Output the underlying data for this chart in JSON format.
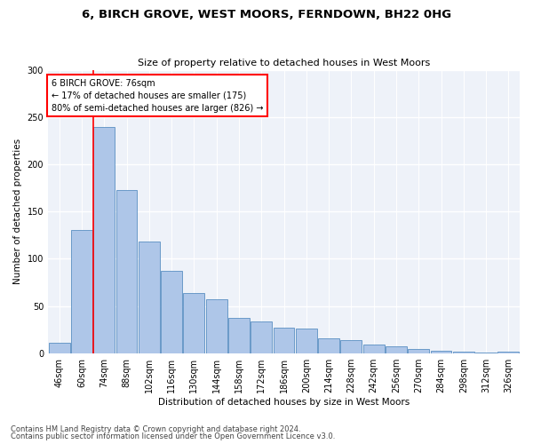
{
  "title": "6, BIRCH GROVE, WEST MOORS, FERNDOWN, BH22 0HG",
  "subtitle": "Size of property relative to detached houses in West Moors",
  "xlabel": "Distribution of detached houses by size in West Moors",
  "ylabel": "Number of detached properties",
  "bar_color": "#aec6e8",
  "bar_edge_color": "#5a8fc2",
  "annotation_title": "6 BIRCH GROVE: 76sqm",
  "annotation_line1": "← 17% of detached houses are smaller (175)",
  "annotation_line2": "80% of semi-detached houses are larger (826) →",
  "categories": [
    "46sqm",
    "60sqm",
    "74sqm",
    "88sqm",
    "102sqm",
    "116sqm",
    "130sqm",
    "144sqm",
    "158sqm",
    "172sqm",
    "186sqm",
    "200sqm",
    "214sqm",
    "228sqm",
    "242sqm",
    "256sqm",
    "270sqm",
    "284sqm",
    "298sqm",
    "312sqm",
    "326sqm"
  ],
  "bin_edges": [
    46,
    60,
    74,
    88,
    102,
    116,
    130,
    144,
    158,
    172,
    186,
    200,
    214,
    228,
    242,
    256,
    270,
    284,
    298,
    312,
    326,
    340
  ],
  "values": [
    11,
    131,
    240,
    173,
    118,
    87,
    64,
    57,
    37,
    34,
    27,
    26,
    16,
    14,
    9,
    7,
    4,
    3,
    2,
    1,
    2
  ],
  "ylim": [
    0,
    300
  ],
  "yticks": [
    0,
    50,
    100,
    150,
    200,
    250,
    300
  ],
  "footer1": "Contains HM Land Registry data © Crown copyright and database right 2024.",
  "footer2": "Contains public sector information licensed under the Open Government Licence v3.0.",
  "background_color": "#eef2f9"
}
